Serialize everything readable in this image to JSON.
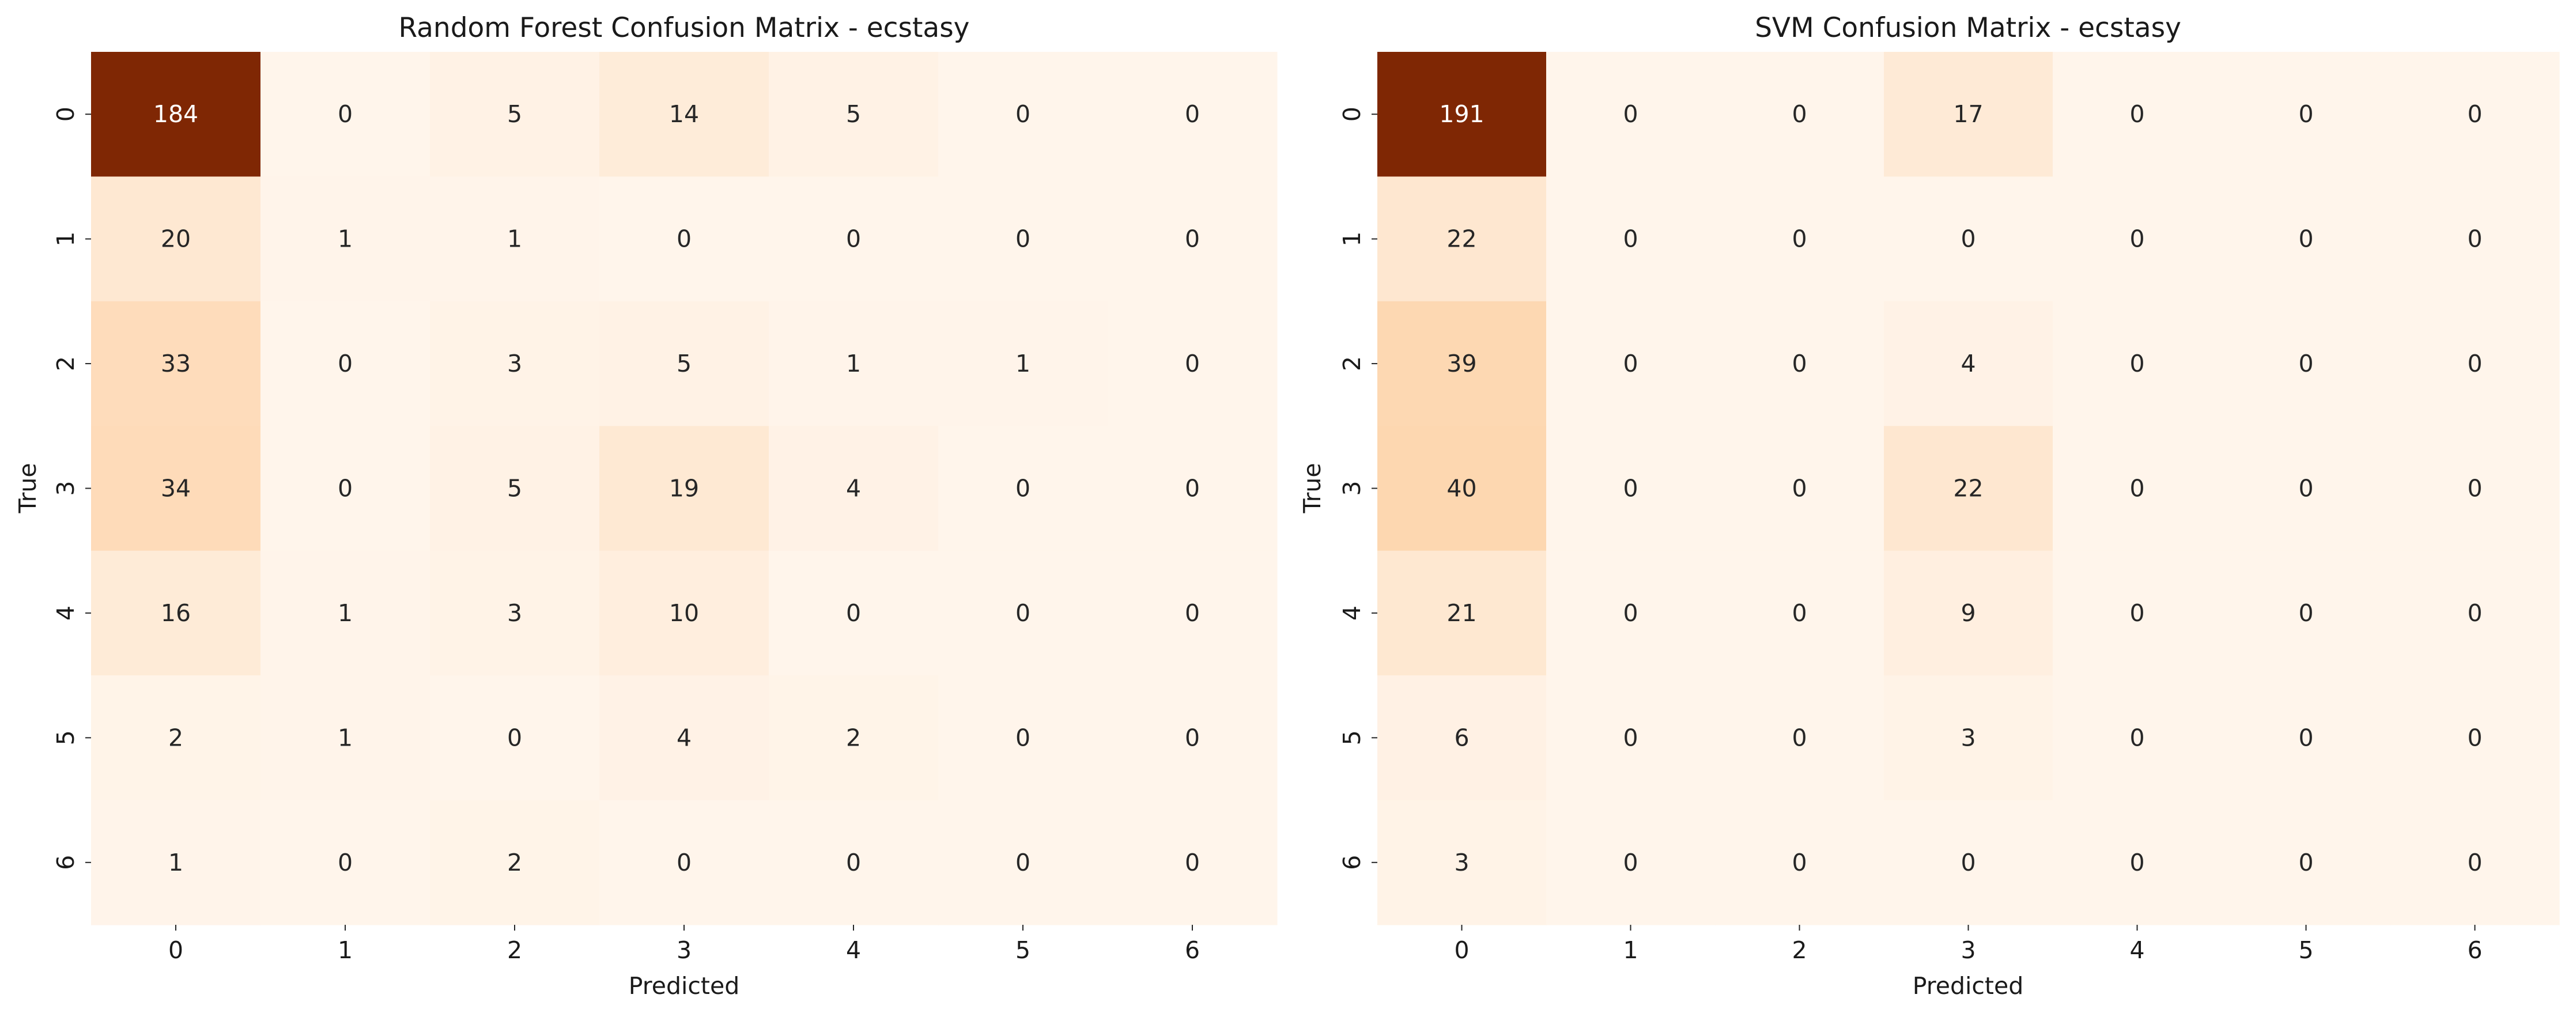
{
  "colors": {
    "cmap": "Oranges",
    "low": "#fff5eb",
    "high": "#7f2704"
  },
  "chart_data": [
    {
      "type": "heatmap",
      "title": "Random Forest Confusion Matrix - ecstasy",
      "xlabel": "Predicted",
      "ylabel": "True",
      "x_categories": [
        "0",
        "1",
        "2",
        "3",
        "4",
        "5",
        "6"
      ],
      "y_categories": [
        "0",
        "1",
        "2",
        "3",
        "4",
        "5",
        "6"
      ],
      "values": [
        [
          184,
          0,
          5,
          14,
          5,
          0,
          0
        ],
        [
          20,
          1,
          1,
          0,
          0,
          0,
          0
        ],
        [
          33,
          0,
          3,
          5,
          1,
          1,
          0
        ],
        [
          34,
          0,
          5,
          19,
          4,
          0,
          0
        ],
        [
          16,
          1,
          3,
          10,
          0,
          0,
          0
        ],
        [
          2,
          1,
          0,
          4,
          2,
          0,
          0
        ],
        [
          1,
          0,
          2,
          0,
          0,
          0,
          0
        ]
      ],
      "colorbar": false
    },
    {
      "type": "heatmap",
      "title": "SVM Confusion Matrix - ecstasy",
      "xlabel": "Predicted",
      "ylabel": "True",
      "x_categories": [
        "0",
        "1",
        "2",
        "3",
        "4",
        "5",
        "6"
      ],
      "y_categories": [
        "0",
        "1",
        "2",
        "3",
        "4",
        "5",
        "6"
      ],
      "values": [
        [
          191,
          0,
          0,
          17,
          0,
          0,
          0
        ],
        [
          22,
          0,
          0,
          0,
          0,
          0,
          0
        ],
        [
          39,
          0,
          0,
          4,
          0,
          0,
          0
        ],
        [
          40,
          0,
          0,
          22,
          0,
          0,
          0
        ],
        [
          21,
          0,
          0,
          9,
          0,
          0,
          0
        ],
        [
          6,
          0,
          0,
          3,
          0,
          0,
          0
        ],
        [
          3,
          0,
          0,
          0,
          0,
          0,
          0
        ]
      ],
      "colorbar": false
    }
  ]
}
